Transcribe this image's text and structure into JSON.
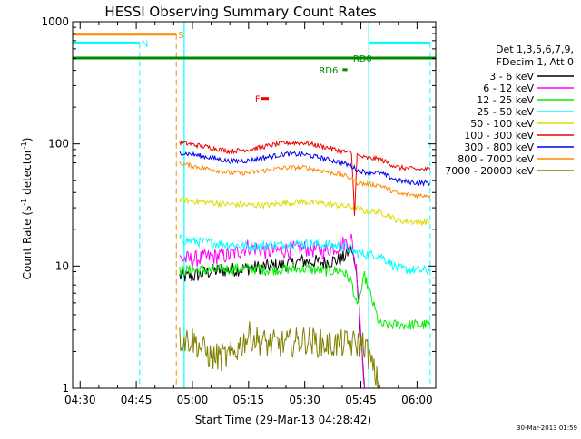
{
  "chart_data": {
    "type": "line",
    "title": "HESSI Observing Summary Count Rates",
    "xlabel": "Start Time (29-Mar-13 04:28:42)",
    "ylabel": "Count Rate (s",
    "ylabel_sup": "-1",
    "ylabel_tail": " detector",
    "ylabel_sup2": "-1",
    "ylabel_end": ")",
    "yscale": "log",
    "xlim": [
      268,
      365
    ],
    "ylim": [
      1,
      1000
    ],
    "x_unit": "minutes after 00:00 UT",
    "x_ticks": [
      {
        "x": 270,
        "label": "04:30"
      },
      {
        "x": 285,
        "label": "04:45"
      },
      {
        "x": 300,
        "label": "05:00"
      },
      {
        "x": 315,
        "label": "05:15"
      },
      {
        "x": 330,
        "label": "05:30"
      },
      {
        "x": 345,
        "label": "05:45"
      },
      {
        "x": 360,
        "label": "06:00"
      }
    ],
    "y_ticks": [
      {
        "y": 1,
        "label": "1"
      },
      {
        "y": 10,
        "label": "10"
      },
      {
        "y": 100,
        "label": "100"
      },
      {
        "y": 1000,
        "label": "1000"
      }
    ],
    "legend": {
      "header": [
        "Det 1,3,5,6,7,9,",
        "FDecim 1, Att 0"
      ],
      "placement": "right"
    },
    "series": [
      {
        "name": "3 - 6 keV",
        "color": "#000000",
        "x": [
          296.6,
          300,
          305,
          310,
          315,
          320,
          325,
          330,
          335,
          340,
          342.5,
          344,
          346,
          350,
          355,
          360,
          363.5
        ],
        "y": [
          8.2,
          8.2,
          9.1,
          9.3,
          9.6,
          9.9,
          10.3,
          11,
          10.7,
          11.4,
          14,
          7.8,
          1,
          1,
          1,
          1,
          1
        ]
      },
      {
        "name": "6 - 12 keV",
        "color": "#ff00ff",
        "x": [
          296.6,
          300,
          305,
          310,
          315,
          320,
          325,
          330,
          335,
          340,
          342.5,
          344,
          346,
          350,
          355,
          360,
          363.5
        ],
        "y": [
          11.5,
          11.3,
          11.9,
          12.3,
          14.5,
          13.2,
          13.6,
          14,
          13.3,
          15,
          16.5,
          8.5,
          1,
          1,
          1,
          1,
          1
        ]
      },
      {
        "name": "12 - 25 keV",
        "color": "#00ee00",
        "x": [
          296.6,
          300,
          305,
          310,
          315,
          320,
          325,
          330,
          335,
          340,
          342.5,
          344,
          346,
          350,
          355,
          360,
          363.5
        ],
        "y": [
          9.1,
          9.3,
          9.2,
          9.5,
          9.5,
          9.3,
          9.4,
          9.5,
          9.1,
          9.2,
          7.5,
          4.5,
          8.3,
          3.3,
          3.3,
          3.3,
          3.3
        ]
      },
      {
        "name": "25 - 50 keV",
        "color": "#00ffff",
        "x": [
          296.6,
          300,
          305,
          310,
          315,
          320,
          325,
          330,
          335,
          340,
          342.5,
          344,
          346,
          350,
          355,
          360,
          363.5
        ],
        "y": [
          16.5,
          16,
          15.5,
          15,
          14.5,
          14.8,
          15,
          15.3,
          15,
          14.5,
          13.5,
          12.7,
          12.5,
          12.3,
          9.5,
          9.2,
          9.2
        ]
      },
      {
        "name": "50 - 100 keV",
        "color": "#dddd00",
        "x": [
          296.6,
          300,
          305,
          310,
          315,
          320,
          325,
          330,
          335,
          340,
          342.5,
          344,
          346,
          350,
          355,
          360,
          363.5
        ],
        "y": [
          35,
          34,
          33,
          32,
          31.5,
          31.5,
          33,
          33.5,
          32.5,
          31,
          30.5,
          30,
          28,
          28,
          23.5,
          23,
          23
        ]
      },
      {
        "name": "100 - 300 keV",
        "color": "#ee0000",
        "x": [
          296.6,
          300,
          305,
          310,
          315,
          320,
          325,
          330,
          335,
          340,
          342.5,
          343.3,
          344,
          346,
          350,
          355,
          360,
          363.5
        ],
        "y": [
          103,
          99,
          93,
          87,
          90,
          96,
          102,
          102,
          95,
          87,
          84,
          27,
          81,
          77,
          75,
          64,
          62,
          62
        ]
      },
      {
        "name": "300 - 800 keV",
        "color": "#0000ee",
        "x": [
          296.6,
          300,
          305,
          310,
          315,
          320,
          325,
          330,
          335,
          340,
          342.5,
          344,
          346,
          350,
          355,
          360,
          363.5
        ],
        "y": [
          85,
          82,
          77,
          72,
          73,
          78,
          83,
          82,
          76,
          70,
          66,
          61,
          59,
          58,
          50,
          48,
          48
        ]
      },
      {
        "name": "800 - 7000 keV",
        "color": "#ff8800",
        "x": [
          296.6,
          300,
          305,
          310,
          315,
          320,
          325,
          330,
          335,
          340,
          342.5,
          344,
          346,
          350,
          355,
          360,
          363.5
        ],
        "y": [
          69,
          66,
          62,
          58,
          58,
          61,
          64,
          64,
          60,
          56,
          52,
          48,
          47,
          46,
          39,
          38,
          38
        ]
      },
      {
        "name": "7000 - 20000 keV",
        "color": "#808000",
        "x": [
          296.6,
          300,
          305,
          310,
          315,
          320,
          325,
          330,
          335,
          340,
          342.5,
          344,
          346,
          350,
          355,
          360,
          363.5
        ],
        "y": [
          2.5,
          2.5,
          1.8,
          1.8,
          2.7,
          2.3,
          2.3,
          2.5,
          2.3,
          2.3,
          2.3,
          2.3,
          2.3,
          1,
          1,
          1,
          1
        ]
      }
    ],
    "attenuator_states": [
      {
        "label": "",
        "color": "#00ffff",
        "x_vertical": 297.8
      },
      {
        "label": "",
        "color": "#00ffff",
        "x_vertical": 347.1
      }
    ],
    "flags": [
      {
        "label": "S",
        "color": "#ff8800",
        "x": [
          268,
          295.7
        ],
        "y": 790,
        "label_x": 296.2,
        "dashed_at": 295.7
      },
      {
        "label": "N",
        "color": "#00ffff",
        "x": [
          268,
          285.9
        ],
        "y": 670,
        "label_x": 286.4,
        "dashed_at": 285.9
      },
      {
        "label": "N",
        "color": "#00ffff",
        "x": [
          347.1,
          363.5
        ],
        "y": 670,
        "label_x": null,
        "dashed_at": 363.5
      },
      {
        "label": "F",
        "color": "#ee0000",
        "x": [
          318.2,
          320.4
        ],
        "y": 235,
        "label_x": 316.7,
        "dashed_at": null
      },
      {
        "label": "RD0",
        "color": "#008800",
        "x": [
          268,
          365
        ],
        "y": 505,
        "label_x": 342.9,
        "dashed_at": null
      },
      {
        "label": "RD6",
        "color": "#008800",
        "x": [
          340.1,
          341.4
        ],
        "y": 405,
        "label_x": 333.8,
        "dashed_at": null
      }
    ]
  },
  "footer_timestamp": "30-Mar-2013 01:59"
}
